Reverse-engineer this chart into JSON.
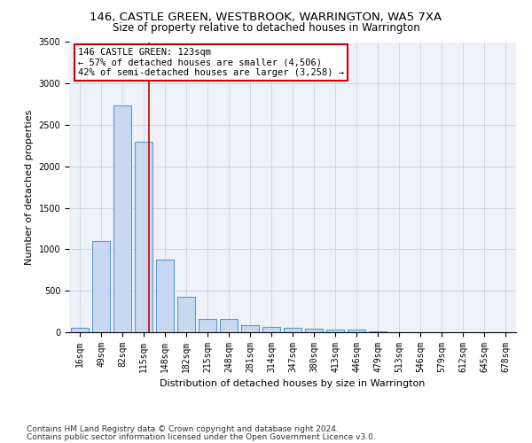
{
  "title1": "146, CASTLE GREEN, WESTBROOK, WARRINGTON, WA5 7XA",
  "title2": "Size of property relative to detached houses in Warrington",
  "xlabel": "Distribution of detached houses by size in Warrington",
  "ylabel": "Number of detached properties",
  "categories": [
    "16sqm",
    "49sqm",
    "82sqm",
    "115sqm",
    "148sqm",
    "182sqm",
    "215sqm",
    "248sqm",
    "281sqm",
    "314sqm",
    "347sqm",
    "380sqm",
    "413sqm",
    "446sqm",
    "479sqm",
    "513sqm",
    "546sqm",
    "579sqm",
    "612sqm",
    "645sqm",
    "678sqm"
  ],
  "values": [
    55,
    1100,
    2740,
    2300,
    875,
    430,
    165,
    160,
    88,
    60,
    50,
    45,
    35,
    30,
    10,
    5,
    3,
    2,
    1,
    1,
    0
  ],
  "bar_color": "#c8d8f0",
  "bar_edge_color": "#5a9bd5",
  "vline_color": "#cc0000",
  "annotation_line1": "146 CASTLE GREEN: 123sqm",
  "annotation_line2": "← 57% of detached houses are smaller (4,506)",
  "annotation_line3": "42% of semi-detached houses are larger (3,258) →",
  "annotation_box_color": "#ffffff",
  "annotation_box_edge": "#cc0000",
  "ylim": [
    0,
    3500
  ],
  "yticks": [
    0,
    500,
    1000,
    1500,
    2000,
    2500,
    3000,
    3500
  ],
  "grid_color": "#d0d8e8",
  "bg_color": "#eef2f8",
  "footer1": "Contains HM Land Registry data © Crown copyright and database right 2024.",
  "footer2": "Contains public sector information licensed under the Open Government Licence v3.0.",
  "title1_fontsize": 9.5,
  "title2_fontsize": 8.5,
  "xlabel_fontsize": 8,
  "ylabel_fontsize": 8,
  "tick_fontsize": 7,
  "footer_fontsize": 6.5,
  "annot_fontsize": 7.5
}
